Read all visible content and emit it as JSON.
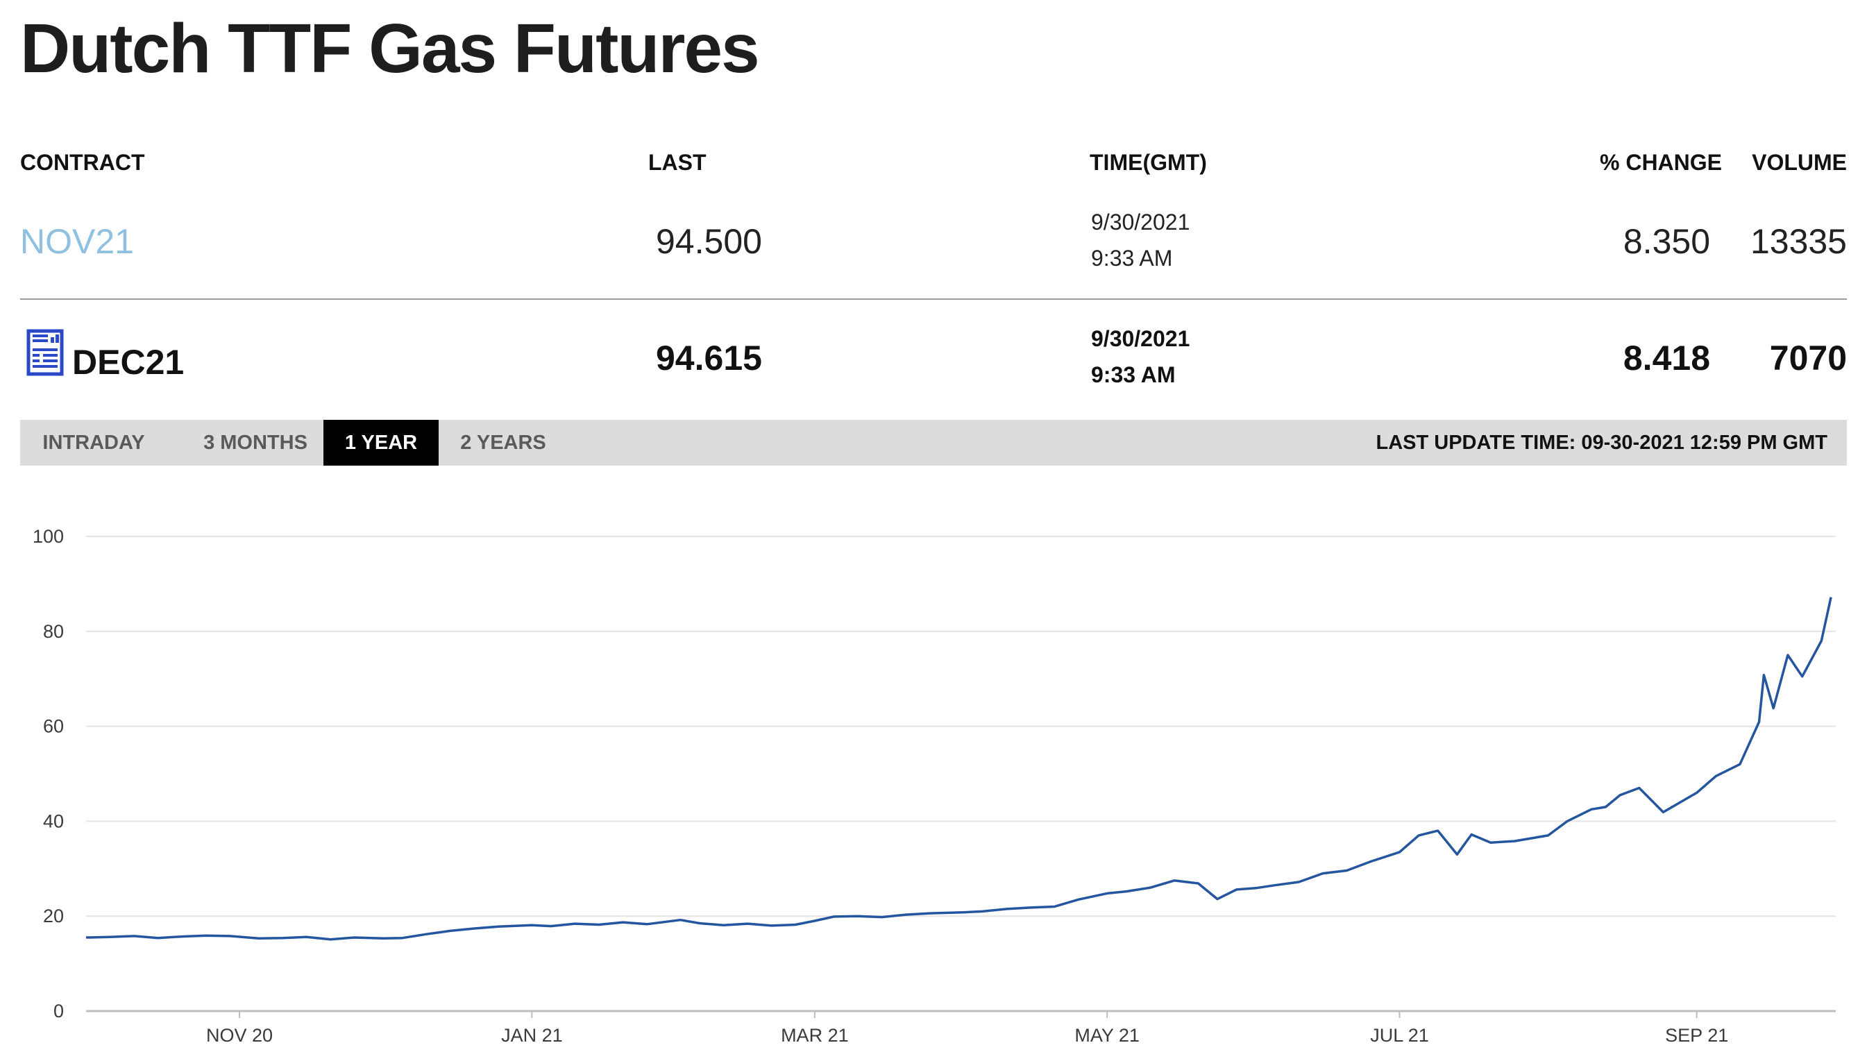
{
  "page": {
    "title": "Dutch TTF Gas Futures"
  },
  "table": {
    "headers": {
      "contract": "CONTRACT",
      "last": "LAST",
      "time": "TIME(GMT)",
      "change": "% CHANGE",
      "volume": "VOLUME"
    },
    "rows": [
      {
        "contract": "NOV21",
        "last": "94.500",
        "date": "9/30/2021",
        "time": "9:33 AM",
        "change": "8.350",
        "volume": "13335"
      },
      {
        "contract": "DEC21",
        "last": "94.615",
        "date": "9/30/2021",
        "time": "9:33 AM",
        "change": "8.418",
        "volume": "7070",
        "icon": "report-icon"
      }
    ]
  },
  "tabs": [
    {
      "label": "INTRADAY",
      "active": false
    },
    {
      "label": "3 MONTHS",
      "active": false
    },
    {
      "label": "1 YEAR",
      "active": true
    },
    {
      "label": "2 YEARS",
      "active": false
    }
  ],
  "last_update": "LAST UPDATE TIME: 09-30-2021 12:59 PM GMT",
  "colors": {
    "line": "#2456a0",
    "tab_active_bg": "#000000",
    "tab_bar_bg": "#dcdcdc",
    "link": "#8fc0e0"
  },
  "chart_data": {
    "type": "line",
    "title": "",
    "xlabel": "",
    "ylabel": "",
    "ylim": [
      0,
      100
    ],
    "yticks": [
      0,
      20,
      40,
      60,
      80,
      100
    ],
    "xticks": [
      "NOV 20",
      "JAN 21",
      "MAR 21",
      "MAY 21",
      "JUL 21",
      "SEP 21"
    ],
    "xtick_dates": [
      "2020-11-01",
      "2021-01-01",
      "2021-03-01",
      "2021-05-01",
      "2021-07-01",
      "2021-09-01"
    ],
    "xlim": [
      "2020-09-30",
      "2021-09-30"
    ],
    "grid": true,
    "series": [
      {
        "x": [
          "2020-09-30",
          "2020-10-05",
          "2020-10-10",
          "2020-10-15",
          "2020-10-20",
          "2020-10-25",
          "2020-10-30",
          "2020-11-05",
          "2020-11-10",
          "2020-11-15",
          "2020-11-20",
          "2020-11-25",
          "2020-12-01",
          "2020-12-05",
          "2020-12-10",
          "2020-12-15",
          "2020-12-20",
          "2020-12-25",
          "2021-01-01",
          "2021-01-05",
          "2021-01-10",
          "2021-01-15",
          "2021-01-20",
          "2021-01-25",
          "2021-02-01",
          "2021-02-05",
          "2021-02-10",
          "2021-02-15",
          "2021-02-20",
          "2021-02-25",
          "2021-03-01",
          "2021-03-05",
          "2021-03-10",
          "2021-03-15",
          "2021-03-20",
          "2021-03-25",
          "2021-04-01",
          "2021-04-05",
          "2021-04-10",
          "2021-04-15",
          "2021-04-20",
          "2021-04-25",
          "2021-05-01",
          "2021-05-05",
          "2021-05-10",
          "2021-05-15",
          "2021-05-20",
          "2021-05-24",
          "2021-05-28",
          "2021-06-01",
          "2021-06-05",
          "2021-06-10",
          "2021-06-15",
          "2021-06-20",
          "2021-06-25",
          "2021-07-01",
          "2021-07-05",
          "2021-07-09",
          "2021-07-13",
          "2021-07-16",
          "2021-07-20",
          "2021-07-25",
          "2021-08-01",
          "2021-08-05",
          "2021-08-10",
          "2021-08-13",
          "2021-08-16",
          "2021-08-20",
          "2021-08-25",
          "2021-09-01",
          "2021-09-05",
          "2021-09-10",
          "2021-09-14",
          "2021-09-15",
          "2021-09-17",
          "2021-09-20",
          "2021-09-23",
          "2021-09-27",
          "2021-09-29"
        ],
        "values": [
          15.5,
          15.6,
          15.8,
          15.4,
          15.7,
          15.9,
          15.8,
          15.3,
          15.4,
          15.6,
          15.1,
          15.5,
          15.3,
          15.4,
          16.2,
          16.9,
          17.4,
          17.8,
          18.1,
          17.9,
          18.4,
          18.2,
          18.7,
          18.3,
          19.2,
          18.5,
          18.1,
          18.4,
          18.0,
          18.2,
          19.0,
          19.9,
          20.0,
          19.8,
          20.3,
          20.6,
          20.8,
          21.0,
          21.5,
          21.8,
          22.0,
          23.5,
          24.8,
          25.2,
          26.0,
          27.5,
          26.9,
          23.6,
          25.6,
          25.9,
          26.5,
          27.2,
          29.0,
          29.6,
          31.5,
          33.5,
          37.0,
          38.0,
          33.0,
          37.2,
          35.5,
          35.8,
          37.0,
          40.0,
          42.5,
          43.0,
          45.5,
          47.0,
          41.9,
          46.0,
          49.5,
          52.0,
          60.9,
          70.8,
          63.8,
          75.0,
          70.5,
          78.0,
          87.2
        ]
      }
    ]
  }
}
